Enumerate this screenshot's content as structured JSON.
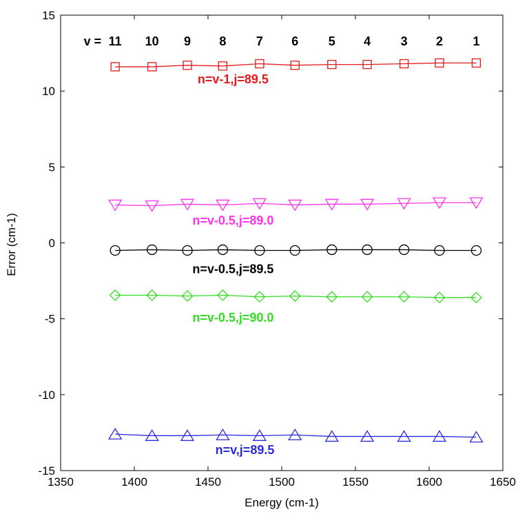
{
  "chart_data": {
    "type": "line",
    "title": "",
    "xlabel": "Energy (cm-1)",
    "ylabel": "Error (cm-1)",
    "xlim": [
      1350,
      1650
    ],
    "ylim": [
      -15,
      15
    ],
    "xticks": [
      1350,
      1400,
      1450,
      1500,
      1550,
      1600,
      1650
    ],
    "yticks": [
      -15,
      -10,
      -5,
      0,
      5,
      10,
      15
    ],
    "grid": false,
    "legend": "none",
    "x": [
      1387,
      1412,
      1436,
      1460,
      1485,
      1509,
      1534,
      1558,
      1583,
      1607,
      1632
    ],
    "v_prefix": "v =",
    "v_labels": [
      "11",
      "10",
      "9",
      "8",
      "7",
      "6",
      "5",
      "4",
      "3",
      "2",
      "1"
    ],
    "series": [
      {
        "name": "n=v-1,j=89.5",
        "color": "#e31a1c",
        "marker": "square",
        "label_x": 1467,
        "label_y": 10.5,
        "values": [
          11.6,
          11.6,
          11.7,
          11.65,
          11.8,
          11.7,
          11.75,
          11.75,
          11.8,
          11.85,
          11.85
        ]
      },
      {
        "name": "n=v-0.5,j=89.0",
        "color": "#ff33ee",
        "marker": "triangle-down",
        "label_x": 1467,
        "label_y": 1.2,
        "values": [
          2.5,
          2.45,
          2.55,
          2.5,
          2.6,
          2.5,
          2.55,
          2.55,
          2.6,
          2.65,
          2.65
        ]
      },
      {
        "name": "n=v-0.5,j=89.5",
        "color": "#000000",
        "marker": "circle",
        "label_x": 1467,
        "label_y": -2.0,
        "values": [
          -0.5,
          -0.45,
          -0.5,
          -0.45,
          -0.5,
          -0.5,
          -0.45,
          -0.45,
          -0.45,
          -0.5,
          -0.5
        ]
      },
      {
        "name": "n=v-0.5,j=90.0",
        "color": "#33dd22",
        "marker": "diamond",
        "label_x": 1467,
        "label_y": -5.2,
        "values": [
          -3.45,
          -3.45,
          -3.5,
          -3.45,
          -3.55,
          -3.5,
          -3.55,
          -3.55,
          -3.55,
          -3.6,
          -3.6
        ]
      },
      {
        "name": "n=v,j=89.5",
        "color": "#2a2ae0",
        "marker": "triangle-up",
        "label_x": 1475,
        "label_y": -13.9,
        "values": [
          -12.6,
          -12.7,
          -12.7,
          -12.65,
          -12.7,
          -12.65,
          -12.75,
          -12.75,
          -12.75,
          -12.75,
          -12.8
        ]
      }
    ]
  }
}
